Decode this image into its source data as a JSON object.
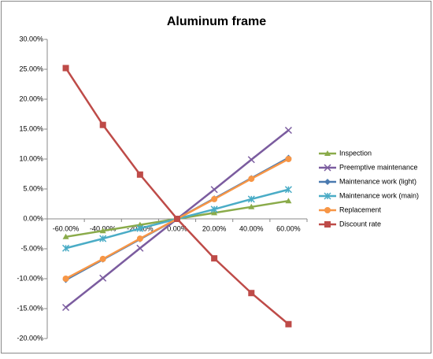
{
  "chart_data": {
    "type": "line",
    "title": "Aluminum frame",
    "categories": [
      "-60.00%",
      "-40.00%",
      "-20.00%",
      "0.00%",
      "20.00%",
      "40.00%",
      "60.00%"
    ],
    "ylim": [
      -20,
      30
    ],
    "yticks": [
      {
        "value": -20,
        "label": "-20.00%"
      },
      {
        "value": -15,
        "label": "-15.00%"
      },
      {
        "value": -10,
        "label": "-10.00%"
      },
      {
        "value": -5,
        "label": "-5.00%"
      },
      {
        "value": 0,
        "label": "0.00%"
      },
      {
        "value": 5,
        "label": "5.00%"
      },
      {
        "value": 10,
        "label": "10.00%"
      },
      {
        "value": 15,
        "label": "15.00%"
      },
      {
        "value": 20,
        "label": "20.00%"
      },
      {
        "value": 25,
        "label": "25.00%"
      },
      {
        "value": 30,
        "label": "30.00%"
      }
    ],
    "grid": false,
    "legend": "right",
    "series": [
      {
        "name": "Inspection",
        "color": "#8aab4a",
        "marker": "triangle",
        "values": [
          -3,
          -2,
          -1,
          0,
          1,
          2,
          3
        ]
      },
      {
        "name": "Preemptive maintenance",
        "color": "#7b5c9f",
        "marker": "x",
        "values": [
          -14.8,
          -9.9,
          -4.9,
          0,
          4.9,
          9.9,
          14.8
        ]
      },
      {
        "name": "Maintenance work (light)",
        "color": "#4a7ab0",
        "marker": "diamond",
        "values": [
          -10.2,
          -6.8,
          -3.4,
          0,
          3.4,
          6.8,
          10.2
        ]
      },
      {
        "name": "Maintenance work (main)",
        "color": "#4aacc6",
        "marker": "star",
        "values": [
          -4.9,
          -3.3,
          -1.6,
          0,
          1.6,
          3.3,
          4.9
        ]
      },
      {
        "name": "Replacement",
        "color": "#f79646",
        "marker": "circle",
        "values": [
          -10,
          -6.7,
          -3.3,
          0,
          3.3,
          6.7,
          10
        ]
      },
      {
        "name": "Discount rate",
        "color": "#be4b48",
        "marker": "square",
        "values": [
          25.2,
          15.7,
          7.4,
          0,
          -6.6,
          -12.4,
          -17.6
        ]
      }
    ]
  }
}
